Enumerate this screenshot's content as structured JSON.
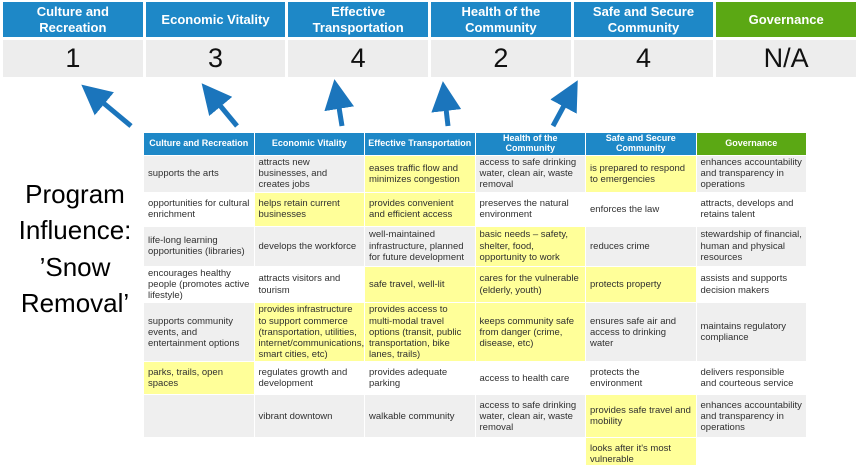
{
  "title": {
    "text": "Program Influence: ’Snow Removal’"
  },
  "colors": {
    "category_blue": "#1e88c7",
    "governance_green": "#5ba814",
    "score_row_gray": "#ededed",
    "highlight_yellow": "#ffff99",
    "stripe_gray": "#efefef",
    "arrow_blue": "#1b75bc"
  },
  "scoreboard": {
    "columns": [
      {
        "label": "Culture and Recreation",
        "score": "1",
        "color": "blue"
      },
      {
        "label": "Economic Vitality",
        "score": "3",
        "color": "blue"
      },
      {
        "label": "Effective Transportation",
        "score": "4",
        "color": "blue"
      },
      {
        "label": "Health of the Community",
        "score": "2",
        "color": "blue"
      },
      {
        "label": "Safe and Secure Community",
        "score": "4",
        "color": "blue"
      },
      {
        "label": "Governance",
        "score": "N/A",
        "color": "green"
      }
    ]
  },
  "matrix": {
    "headers": [
      {
        "label": "Culture and Recreation",
        "color": "blue"
      },
      {
        "label": "Economic Vitality",
        "color": "blue"
      },
      {
        "label": "Effective Transportation",
        "color": "blue"
      },
      {
        "label": "Health of the Community",
        "color": "blue"
      },
      {
        "label": "Safe and Secure Community",
        "color": "blue"
      },
      {
        "label": "Governance",
        "color": "green"
      }
    ],
    "rows": [
      [
        {
          "text": "supports the arts",
          "highlight": false
        },
        {
          "text": "attracts new businesses, and creates jobs",
          "highlight": false
        },
        {
          "text": "eases traffic flow and minimizes congestion",
          "highlight": true
        },
        {
          "text": "access to safe drinking water, clean air, waste removal",
          "highlight": false
        },
        {
          "text": "is prepared to respond to emergencies",
          "highlight": true
        },
        {
          "text": "enhances accountability and transparency in operations",
          "highlight": false
        }
      ],
      [
        {
          "text": "opportunities for cultural enrichment",
          "highlight": false
        },
        {
          "text": "helps retain current businesses",
          "highlight": true
        },
        {
          "text": "provides convenient and efficient access",
          "highlight": true
        },
        {
          "text": "preserves the natural environment",
          "highlight": false
        },
        {
          "text": "enforces the law",
          "highlight": false
        },
        {
          "text": "attracts, develops and retains talent",
          "highlight": false
        }
      ],
      [
        {
          "text": "life-long learning opportunities (libraries)",
          "highlight": false
        },
        {
          "text": "develops the workforce",
          "highlight": false
        },
        {
          "text": "well-maintained infrastructure, planned for future development",
          "highlight": false
        },
        {
          "text": "basic needs – safety, shelter, food, opportunity to work",
          "highlight": true
        },
        {
          "text": "reduces crime",
          "highlight": false
        },
        {
          "text": "stewardship of financial, human and physical resources",
          "highlight": false
        }
      ],
      [
        {
          "text": "encourages healthy people (promotes active lifestyle)",
          "highlight": false
        },
        {
          "text": "attracts visitors and tourism",
          "highlight": false
        },
        {
          "text": "safe travel, well-lit",
          "highlight": true
        },
        {
          "text": "cares for the vulnerable (elderly, youth)",
          "highlight": true
        },
        {
          "text": "protects property",
          "highlight": true
        },
        {
          "text": "assists and supports decision makers",
          "highlight": false
        }
      ],
      [
        {
          "text": "supports community events, and entertainment options",
          "highlight": false
        },
        {
          "text": "provides infrastructure to support commerce (transportation, utilities, internet/communications, smart cities, etc)",
          "highlight": true
        },
        {
          "text": "provides access to multi-modal travel options (transit, public transportation, bike lanes, trails)",
          "highlight": true
        },
        {
          "text": "keeps community safe from danger (crime, disease, etc)",
          "highlight": true
        },
        {
          "text": "ensures safe air and access to drinking water",
          "highlight": false
        },
        {
          "text": "maintains regulatory compliance",
          "highlight": false
        }
      ],
      [
        {
          "text": "parks, trails, open spaces",
          "highlight": true
        },
        {
          "text": "regulates growth and development",
          "highlight": false
        },
        {
          "text": "provides adequate parking",
          "highlight": false
        },
        {
          "text": "access to health care",
          "highlight": false
        },
        {
          "text": "protects the environment",
          "highlight": false
        },
        {
          "text": "delivers responsible and courteous service",
          "highlight": false
        }
      ],
      [
        {
          "text": "",
          "highlight": false
        },
        {
          "text": "vibrant downtown",
          "highlight": false
        },
        {
          "text": "walkable community",
          "highlight": false
        },
        {
          "text": "access to safe drinking water, clean air, waste removal",
          "highlight": false
        },
        {
          "text": "provides safe travel and mobility",
          "highlight": true
        },
        {
          "text": "enhances accountability and transparency in operations",
          "highlight": false
        }
      ],
      [
        {
          "text": "",
          "highlight": false
        },
        {
          "text": "",
          "highlight": false
        },
        {
          "text": "",
          "highlight": false
        },
        {
          "text": "",
          "highlight": false
        },
        {
          "text": "looks after it's most vulnerable",
          "highlight": true
        },
        {
          "text": "",
          "highlight": false
        }
      ]
    ]
  }
}
